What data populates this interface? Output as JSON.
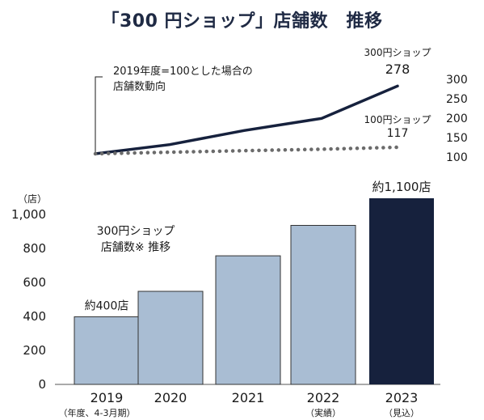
{
  "title": "「300 円ショップ」店舗数　推移",
  "chart_data": [
    {
      "type": "line",
      "annotation": [
        "2019年度=100とした場合の",
        "店舗数動向"
      ],
      "x": [
        2019,
        2020,
        2021,
        2022,
        2023
      ],
      "series": [
        {
          "name": "300円ショップ",
          "values": [
            100,
            124,
            161,
            193,
            278
          ],
          "end_label": "278",
          "color": "#16213d"
        },
        {
          "name": "100円ショップ",
          "values": [
            100,
            104,
            108,
            112,
            117
          ],
          "end_label": "117",
          "color": "#6b6b6b"
        }
      ],
      "yticks": [
        "300",
        "250",
        "200",
        "150",
        "100"
      ],
      "ylim": [
        100,
        300
      ]
    },
    {
      "type": "bar",
      "ylabel": "（店）",
      "annotation": [
        "300円ショップ",
        "店舗数※ 推移"
      ],
      "categories": [
        "2019",
        "2020",
        "2021",
        "2022",
        "2023"
      ],
      "category_notes": [
        "（年度、4-3月期）",
        "",
        "",
        "（実績）",
        "（見込）"
      ],
      "values": [
        400,
        550,
        760,
        940,
        1100
      ],
      "value_labels": [
        "約400店",
        "",
        "",
        "",
        "約1,100店"
      ],
      "ylim": [
        0,
        1100
      ],
      "yticks": [
        "0",
        "200",
        "400",
        "600",
        "800",
        "1,000"
      ],
      "colors": {
        "actual": "#a9bdd3",
        "forecast": "#16213d",
        "stroke": "#333333"
      }
    }
  ]
}
